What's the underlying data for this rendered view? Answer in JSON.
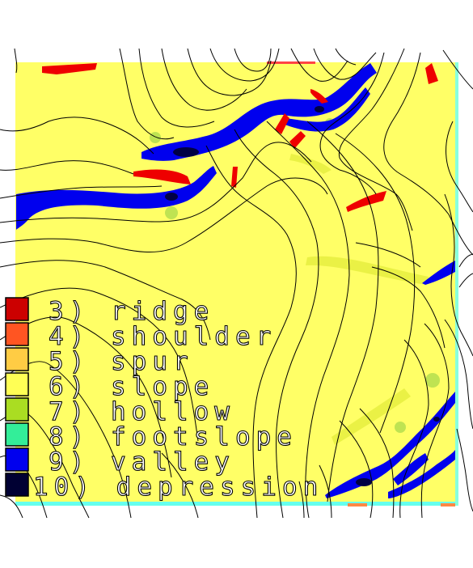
{
  "colors": {
    "background": "#ffffff",
    "slope": "#ffff66",
    "valley": "#0000ee",
    "ridge": "#ee0000",
    "depression": "#000044",
    "hollow": "#c4e84a",
    "spur": "#ffd040",
    "footslope": "#33ee99",
    "shoulder": "#ff5522",
    "contour": "#000000"
  },
  "legend": [
    {
      "label": "3) ridge",
      "color": "#cc0000"
    },
    {
      "label": "4) shoulder",
      "color": "#ff5522"
    },
    {
      "label": "5) spur",
      "color": "#ffcc44"
    },
    {
      "label": "6) slope",
      "color": "#ffff55"
    },
    {
      "label": "7) hollow",
      "color": "#aadd22"
    },
    {
      "label": "8) footslope",
      "color": "#33ee99"
    },
    {
      "label": "9) valley",
      "color": "#0000ee"
    },
    {
      "label": "10) depression",
      "color": "#000033"
    }
  ]
}
